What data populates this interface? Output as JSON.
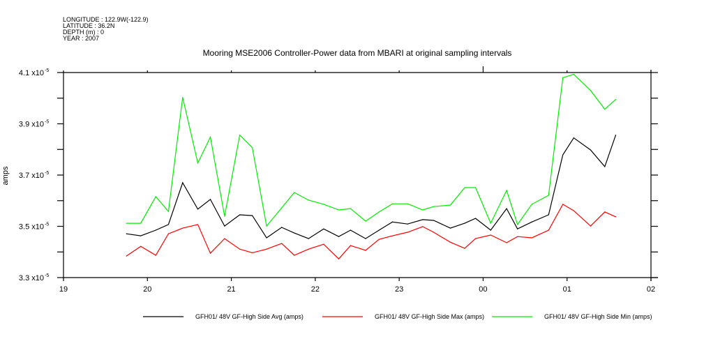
{
  "header": {
    "longitude": "LONGITUDE : 122.9W(-122.9)",
    "latitude": "LATITUDE : 36.2N",
    "depth": "DEPTH (m) : 0",
    "year": "YEAR : 2007"
  },
  "chart_data": {
    "type": "line",
    "title": "Mooring MSE2006 Controller-Power data from MBARI at original sampling intervals",
    "xlabel": "",
    "ylabel": "amps",
    "x_units": "hours since 19:00",
    "xlim": [
      0,
      7
    ],
    "x_ticks": [
      0,
      1,
      2,
      3,
      4,
      5,
      6,
      7
    ],
    "x_tick_labels": [
      "19",
      "20",
      "21",
      "22",
      "23",
      "00",
      "01",
      "02"
    ],
    "ylim": [
      3.3,
      4.1
    ],
    "y_scale_note": "values in units of 1e-5 amps",
    "y_ticks": [
      3.3,
      3.5,
      3.7,
      3.9,
      4.1
    ],
    "y_tick_labels": [
      "3.3 x10",
      "3.5 x10",
      "3.7 x10",
      "3.9 x10",
      "4.1 x10"
    ],
    "y_tick_exponent": "-5",
    "grid": false,
    "legend_placement": "bottom",
    "x": [
      0.75,
      0.92,
      1.1,
      1.25,
      1.42,
      1.6,
      1.75,
      1.92,
      2.1,
      2.25,
      2.42,
      2.6,
      2.75,
      2.92,
      3.1,
      3.28,
      3.42,
      3.6,
      3.76,
      3.92,
      4.1,
      4.28,
      4.41,
      4.61,
      4.78,
      4.91,
      5.09,
      5.28,
      5.41,
      5.58,
      5.78,
      5.95,
      6.08,
      6.28,
      6.45,
      6.58
    ],
    "series": [
      {
        "name": "GFH01/ 48V GF-High Side Avg (amps)",
        "color": "#000000",
        "values": [
          3.471,
          3.463,
          3.485,
          3.507,
          3.67,
          3.567,
          3.605,
          3.501,
          3.545,
          3.542,
          3.455,
          3.496,
          3.474,
          3.452,
          3.49,
          3.46,
          3.485,
          3.452,
          3.485,
          3.517,
          3.509,
          3.526,
          3.523,
          3.493,
          3.512,
          3.531,
          3.485,
          3.569,
          3.49,
          3.517,
          3.545,
          3.779,
          3.845,
          3.798,
          3.733,
          3.856
        ]
      },
      {
        "name": "GFH01/ 48V GF-High Side Max (amps)",
        "color": "#ff0000",
        "values": [
          3.384,
          3.422,
          3.387,
          3.471,
          3.493,
          3.507,
          3.395,
          3.452,
          3.411,
          3.397,
          3.411,
          3.433,
          3.387,
          3.411,
          3.43,
          3.373,
          3.425,
          3.406,
          3.449,
          3.463,
          3.477,
          3.499,
          3.477,
          3.438,
          3.414,
          3.452,
          3.466,
          3.436,
          3.46,
          3.455,
          3.485,
          3.586,
          3.561,
          3.501,
          3.556,
          3.537
        ]
      },
      {
        "name": "GFH01/ 48V GF-High Side Min (amps)",
        "color": "#00ee00",
        "values": [
          3.512,
          3.512,
          3.616,
          3.558,
          4.003,
          3.747,
          3.848,
          3.539,
          3.856,
          3.807,
          3.501,
          3.572,
          3.632,
          3.602,
          3.586,
          3.564,
          3.569,
          3.52,
          3.556,
          3.588,
          3.588,
          3.564,
          3.577,
          3.583,
          3.651,
          3.651,
          3.512,
          3.64,
          3.507,
          3.586,
          3.621,
          4.08,
          4.093,
          4.03,
          3.957,
          3.995
        ]
      }
    ]
  }
}
